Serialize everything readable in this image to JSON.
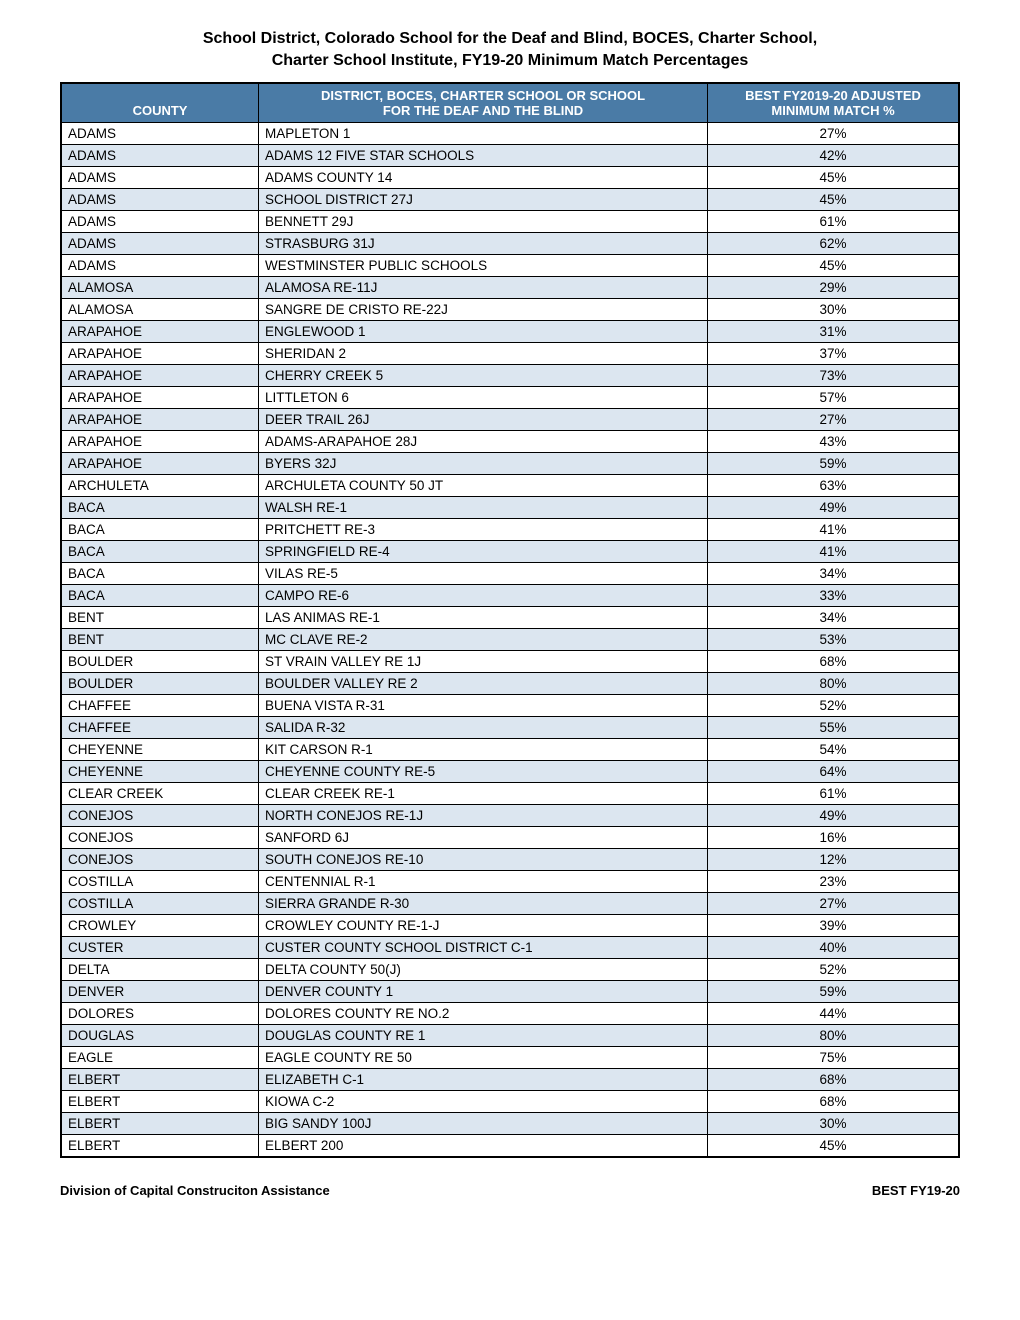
{
  "title_line1": "School District, Colorado School for the Deaf and Blind, BOCES, Charter School,",
  "title_line2": "Charter School Institute, FY19-20 Minimum Match Percentages",
  "columns": {
    "col1": "COUNTY",
    "col2_line1": "DISTRICT, BOCES, CHARTER SCHOOL OR SCHOOL",
    "col2_line2": "FOR THE DEAF AND THE BLIND",
    "col3_line1": "BEST FY2019-20 ADJUSTED",
    "col3_line2": "MINIMUM MATCH %"
  },
  "header_bg": "#4a7ba6",
  "header_fg": "#ffffff",
  "row_even_bg": "#ffffff",
  "row_odd_bg": "#dce6f0",
  "border_color": "#000000",
  "rows": [
    {
      "county": "ADAMS",
      "district": "MAPLETON 1",
      "match": "27%"
    },
    {
      "county": "ADAMS",
      "district": "ADAMS 12 FIVE STAR SCHOOLS",
      "match": "42%"
    },
    {
      "county": "ADAMS",
      "district": "ADAMS COUNTY 14",
      "match": "45%"
    },
    {
      "county": "ADAMS",
      "district": "SCHOOL DISTRICT 27J",
      "match": "45%"
    },
    {
      "county": "ADAMS",
      "district": "BENNETT 29J",
      "match": "61%"
    },
    {
      "county": "ADAMS",
      "district": "STRASBURG 31J",
      "match": "62%"
    },
    {
      "county": "ADAMS",
      "district": "WESTMINSTER PUBLIC SCHOOLS",
      "match": "45%"
    },
    {
      "county": "ALAMOSA",
      "district": "ALAMOSA RE-11J",
      "match": "29%"
    },
    {
      "county": "ALAMOSA",
      "district": "SANGRE DE CRISTO RE-22J",
      "match": "30%"
    },
    {
      "county": "ARAPAHOE",
      "district": "ENGLEWOOD 1",
      "match": "31%"
    },
    {
      "county": "ARAPAHOE",
      "district": "SHERIDAN 2",
      "match": "37%"
    },
    {
      "county": "ARAPAHOE",
      "district": "CHERRY CREEK 5",
      "match": "73%"
    },
    {
      "county": "ARAPAHOE",
      "district": "LITTLETON 6",
      "match": "57%"
    },
    {
      "county": "ARAPAHOE",
      "district": "DEER TRAIL 26J",
      "match": "27%"
    },
    {
      "county": "ARAPAHOE",
      "district": "ADAMS-ARAPAHOE 28J",
      "match": "43%"
    },
    {
      "county": "ARAPAHOE",
      "district": "BYERS 32J",
      "match": "59%"
    },
    {
      "county": "ARCHULETA",
      "district": "ARCHULETA COUNTY 50 JT",
      "match": "63%"
    },
    {
      "county": "BACA",
      "district": "WALSH RE-1",
      "match": "49%"
    },
    {
      "county": "BACA",
      "district": "PRITCHETT RE-3",
      "match": "41%"
    },
    {
      "county": "BACA",
      "district": "SPRINGFIELD RE-4",
      "match": "41%"
    },
    {
      "county": "BACA",
      "district": "VILAS RE-5",
      "match": "34%"
    },
    {
      "county": "BACA",
      "district": "CAMPO RE-6",
      "match": "33%"
    },
    {
      "county": "BENT",
      "district": "LAS ANIMAS RE-1",
      "match": "34%"
    },
    {
      "county": "BENT",
      "district": "MC CLAVE RE-2",
      "match": "53%"
    },
    {
      "county": "BOULDER",
      "district": "ST VRAIN VALLEY RE 1J",
      "match": "68%"
    },
    {
      "county": "BOULDER",
      "district": "BOULDER VALLEY RE 2",
      "match": "80%"
    },
    {
      "county": "CHAFFEE",
      "district": "BUENA VISTA R-31",
      "match": "52%"
    },
    {
      "county": "CHAFFEE",
      "district": "SALIDA R-32",
      "match": "55%"
    },
    {
      "county": "CHEYENNE",
      "district": "KIT CARSON R-1",
      "match": "54%"
    },
    {
      "county": "CHEYENNE",
      "district": "CHEYENNE COUNTY RE-5",
      "match": "64%"
    },
    {
      "county": "CLEAR CREEK",
      "district": "CLEAR CREEK RE-1",
      "match": "61%"
    },
    {
      "county": "CONEJOS",
      "district": "NORTH CONEJOS RE-1J",
      "match": "49%"
    },
    {
      "county": "CONEJOS",
      "district": "SANFORD 6J",
      "match": "16%"
    },
    {
      "county": "CONEJOS",
      "district": "SOUTH CONEJOS RE-10",
      "match": "12%"
    },
    {
      "county": "COSTILLA",
      "district": "CENTENNIAL R-1",
      "match": "23%"
    },
    {
      "county": "COSTILLA",
      "district": "SIERRA GRANDE R-30",
      "match": "27%"
    },
    {
      "county": "CROWLEY",
      "district": "CROWLEY COUNTY RE-1-J",
      "match": "39%"
    },
    {
      "county": "CUSTER",
      "district": "CUSTER COUNTY SCHOOL DISTRICT C-1",
      "match": "40%"
    },
    {
      "county": "DELTA",
      "district": "DELTA COUNTY 50(J)",
      "match": "52%"
    },
    {
      "county": "DENVER",
      "district": "DENVER COUNTY 1",
      "match": "59%"
    },
    {
      "county": "DOLORES",
      "district": "DOLORES COUNTY RE NO.2",
      "match": "44%"
    },
    {
      "county": "DOUGLAS",
      "district": "DOUGLAS COUNTY RE 1",
      "match": "80%"
    },
    {
      "county": "EAGLE",
      "district": "EAGLE COUNTY RE 50",
      "match": "75%"
    },
    {
      "county": "ELBERT",
      "district": "ELIZABETH C-1",
      "match": "68%"
    },
    {
      "county": "ELBERT",
      "district": "KIOWA C-2",
      "match": "68%"
    },
    {
      "county": "ELBERT",
      "district": "BIG SANDY 100J",
      "match": "30%"
    },
    {
      "county": "ELBERT",
      "district": "ELBERT 200",
      "match": "45%"
    }
  ],
  "footer_left": "Division of Capital Construciton Assistance",
  "footer_right": "BEST FY19-20"
}
